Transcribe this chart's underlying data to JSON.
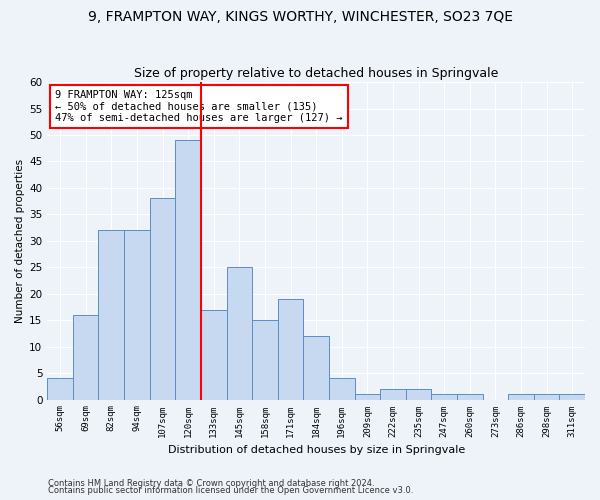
{
  "title1": "9, FRAMPTON WAY, KINGS WORTHY, WINCHESTER, SO23 7QE",
  "title2": "Size of property relative to detached houses in Springvale",
  "xlabel": "Distribution of detached houses by size in Springvale",
  "ylabel": "Number of detached properties",
  "bar_labels": [
    "56sqm",
    "69sqm",
    "82sqm",
    "94sqm",
    "107sqm",
    "120sqm",
    "133sqm",
    "145sqm",
    "158sqm",
    "171sqm",
    "184sqm",
    "196sqm",
    "209sqm",
    "222sqm",
    "235sqm",
    "247sqm",
    "260sqm",
    "273sqm",
    "286sqm",
    "298sqm",
    "311sqm"
  ],
  "bar_values": [
    4,
    16,
    32,
    32,
    38,
    49,
    17,
    25,
    15,
    19,
    12,
    4,
    1,
    2,
    2,
    1,
    1,
    0,
    1,
    1,
    1
  ],
  "bar_color": "#c6d9f1",
  "bar_edge_color": "#5b8ec4",
  "redline_after_index": 5,
  "annotation_text": "9 FRAMPTON WAY: 125sqm\n← 50% of detached houses are smaller (135)\n47% of semi-detached houses are larger (127) →",
  "annotation_box_color": "white",
  "annotation_box_edge": "red",
  "ylim": [
    0,
    60
  ],
  "yticks": [
    0,
    5,
    10,
    15,
    20,
    25,
    30,
    35,
    40,
    45,
    50,
    55,
    60
  ],
  "footer1": "Contains HM Land Registry data © Crown copyright and database right 2024.",
  "footer2": "Contains public sector information licensed under the Open Government Licence v3.0.",
  "background_color": "#eef2f9",
  "grid_color": "#ffffff",
  "title1_fontsize": 10,
  "title2_fontsize": 9
}
